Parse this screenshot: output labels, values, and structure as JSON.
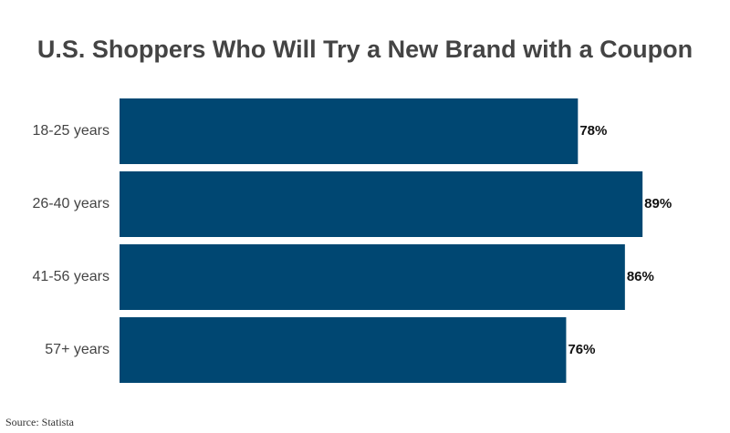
{
  "chart_data": {
    "type": "bar",
    "orientation": "horizontal",
    "title": "U.S. Shoppers Who Will Try a New Brand with a Coupon",
    "categories": [
      "18-25 years",
      "26-40 years",
      "41-56 years",
      "57+ years"
    ],
    "values": [
      78,
      89,
      86,
      76
    ],
    "value_labels": [
      "78%",
      "89%",
      "86%",
      "76%"
    ],
    "color": "#004772",
    "source": "Source: Statista"
  }
}
